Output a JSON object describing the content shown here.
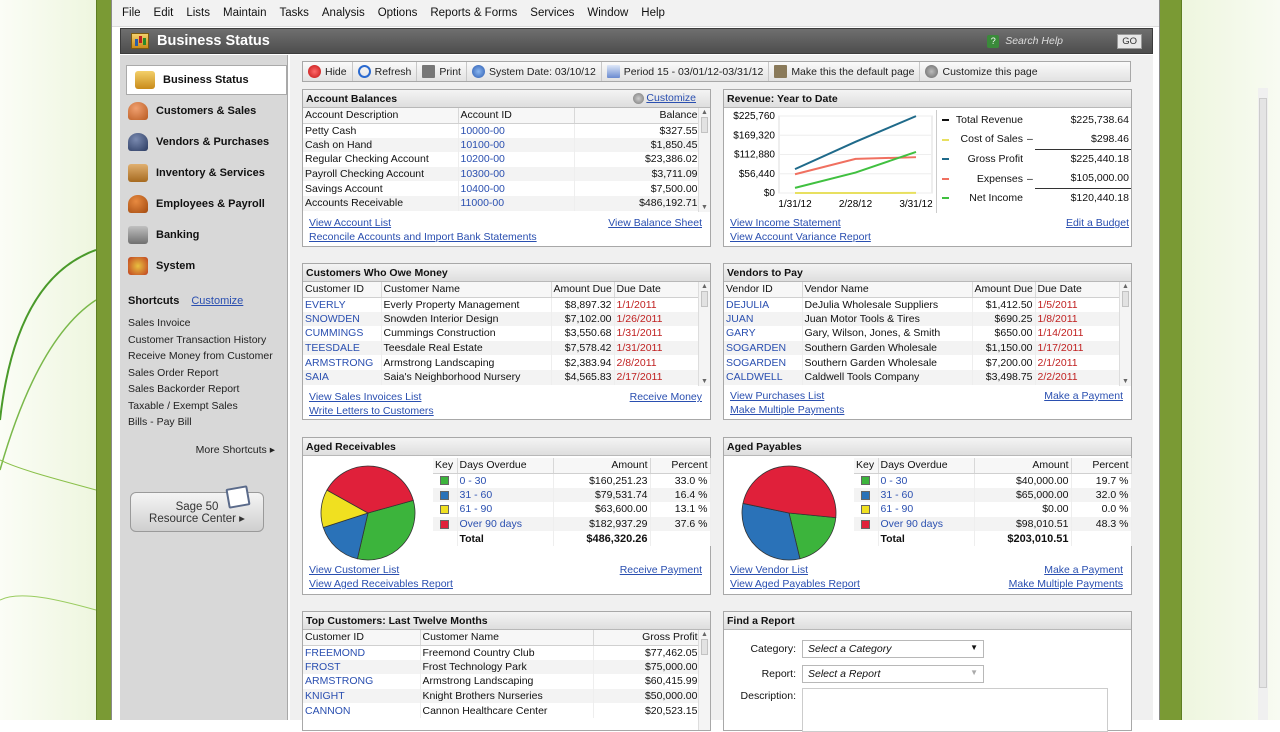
{
  "menu": [
    "File",
    "Edit",
    "Lists",
    "Maintain",
    "Tasks",
    "Analysis",
    "Options",
    "Reports & Forms",
    "Services",
    "Window",
    "Help"
  ],
  "title": "Business Status",
  "search_help": "Search Help",
  "go": "GO",
  "nav": [
    {
      "label": "Business Status",
      "icon": "business-status-icon"
    },
    {
      "label": "Customers & Sales",
      "icon": "customers-icon"
    },
    {
      "label": "Vendors & Purchases",
      "icon": "vendors-icon"
    },
    {
      "label": "Inventory & Services",
      "icon": "inventory-icon"
    },
    {
      "label": "Employees & Payroll",
      "icon": "employees-icon"
    },
    {
      "label": "Banking",
      "icon": "bank-icon"
    },
    {
      "label": "System",
      "icon": "system-icon"
    }
  ],
  "shortcuts": {
    "title": "Shortcuts",
    "customize": "Customize",
    "items": [
      "Sales Invoice",
      "Customer Transaction History",
      "Receive Money from Customer",
      "Sales Order Report",
      "Sales Backorder Report",
      "Taxable / Exempt Sales",
      "Bills - Pay Bill"
    ],
    "more": "More Shortcuts ▸"
  },
  "resource": {
    "line1": "Sage 50",
    "line2": "Resource Center ▸"
  },
  "toolbar": {
    "hide": "Hide",
    "refresh": "Refresh",
    "print": "Print",
    "system_date": "System Date: 03/10/12",
    "period": "Period 15 - 03/01/12-03/31/12",
    "default": "Make this the default page",
    "customize": "Customize this page"
  },
  "account_balances": {
    "title": "Account Balances",
    "customize": "Customize",
    "headers": [
      "Account Description",
      "Account ID",
      "Balance"
    ],
    "rows": [
      [
        "Petty Cash",
        "10000-00",
        "$327.55"
      ],
      [
        "Cash on Hand",
        "10100-00",
        "$1,850.45"
      ],
      [
        "Regular Checking Account",
        "10200-00",
        "$23,386.02"
      ],
      [
        "Payroll Checking Account",
        "10300-00",
        "$3,711.09"
      ],
      [
        "Savings Account",
        "10400-00",
        "$7,500.00"
      ],
      [
        "Accounts Receivable",
        "11000-00",
        "$486,192.71"
      ]
    ],
    "links": [
      "View Account List",
      "View Balance Sheet",
      "Reconcile Accounts and Import Bank Statements"
    ]
  },
  "revenue": {
    "title": "Revenue: Year to Date",
    "links": [
      "View Income Statement",
      "Edit a Budget",
      "View Account Variance Report"
    ],
    "legend": [
      {
        "label": "Total Revenue",
        "op": "",
        "value": "$225,738.64",
        "color": "#111111"
      },
      {
        "label": "Cost of Sales",
        "op": "–",
        "value": "$298.46",
        "color": "#e8e060"
      },
      {
        "label": "Gross Profit",
        "op": "",
        "value": "$225,440.18",
        "color": "#1f6a8a"
      },
      {
        "label": "Expenses",
        "op": "–",
        "value": "$105,000.00",
        "color": "#f07060"
      },
      {
        "label": "Net Income",
        "op": "",
        "value": "$120,440.18",
        "color": "#40c040"
      }
    ]
  },
  "chart_data": {
    "type": "line",
    "x": [
      "1/31/12",
      "2/28/12",
      "3/31/12"
    ],
    "yticks": [
      "$225,760",
      "$169,320",
      "$112,880",
      "$56,440",
      "$0"
    ],
    "ylim": [
      0,
      225760
    ],
    "series": [
      {
        "name": "Gross Profit",
        "color": "#1f6a8a",
        "values": [
          70000,
          150000,
          225440
        ]
      },
      {
        "name": "Expenses",
        "color": "#f07060",
        "values": [
          55000,
          100000,
          105000
        ]
      },
      {
        "name": "Net Income",
        "color": "#40c040",
        "values": [
          15000,
          60000,
          120440
        ]
      },
      {
        "name": "Cost of Sales",
        "color": "#e8e060",
        "values": [
          0,
          0,
          298
        ]
      }
    ]
  },
  "customers_owe": {
    "title": "Customers Who Owe Money",
    "headers": [
      "Customer ID",
      "Customer Name",
      "Amount Due",
      "Due Date"
    ],
    "rows": [
      [
        "EVERLY",
        "Everly Property Management",
        "$8,897.32",
        "1/1/2011"
      ],
      [
        "SNOWDEN",
        "Snowden Interior Design",
        "$7,102.00",
        "1/26/2011"
      ],
      [
        "CUMMINGS",
        "Cummings Construction",
        "$3,550.68",
        "1/31/2011"
      ],
      [
        "TEESDALE",
        "Teesdale Real Estate",
        "$7,578.42",
        "1/31/2011"
      ],
      [
        "ARMSTRONG",
        "Armstrong Landscaping",
        "$2,383.94",
        "2/8/2011"
      ],
      [
        "SAIA",
        "Saia's Neighborhood Nursery",
        "$4,565.83",
        "2/17/2011"
      ]
    ],
    "links": [
      "View Sales Invoices List",
      "Receive Money",
      "Write Letters to Customers"
    ]
  },
  "vendors_pay": {
    "title": "Vendors to Pay",
    "headers": [
      "Vendor ID",
      "Vendor Name",
      "Amount Due",
      "Due Date"
    ],
    "rows": [
      [
        "DEJULIA",
        "DeJulia Wholesale Suppliers",
        "$1,412.50",
        "1/5/2011"
      ],
      [
        "JUAN",
        "Juan Motor Tools & Tires",
        "$690.25",
        "1/8/2011"
      ],
      [
        "GARY",
        "Gary, Wilson, Jones, & Smith",
        "$650.00",
        "1/14/2011"
      ],
      [
        "SOGARDEN",
        "Southern Garden Wholesale",
        "$1,150.00",
        "1/17/2011"
      ],
      [
        "SOGARDEN",
        "Southern Garden Wholesale",
        "$7,200.00",
        "2/1/2011"
      ],
      [
        "CALDWELL",
        "Caldwell Tools Company",
        "$3,498.75",
        "2/2/2011"
      ]
    ],
    "links": [
      "View Purchases List",
      "Make a Payment",
      "Make Multiple Payments"
    ]
  },
  "aged_receivables": {
    "title": "Aged Receivables",
    "headers": [
      "Key",
      "Days Overdue",
      "Amount",
      "Percent"
    ],
    "rows": [
      {
        "color": "#3cb43c",
        "label": "0 - 30",
        "amount": "$160,251.23",
        "percent": "33.0 %"
      },
      {
        "color": "#2a72b8",
        "label": "31 - 60",
        "amount": "$79,531.74",
        "percent": "16.4 %"
      },
      {
        "color": "#f0e020",
        "label": "61 - 90",
        "amount": "$63,600.00",
        "percent": "13.1 %"
      },
      {
        "color": "#e0203a",
        "label": "Over 90 days",
        "amount": "$182,937.29",
        "percent": "37.6 %"
      }
    ],
    "total_label": "Total",
    "total": "$486,320.26",
    "pie": [
      33.0,
      16.4,
      13.1,
      37.6
    ],
    "links": [
      "View Customer List",
      "Receive Payment",
      "View Aged Receivables Report"
    ]
  },
  "aged_payables": {
    "title": "Aged Payables",
    "headers": [
      "Key",
      "Days Overdue",
      "Amount",
      "Percent"
    ],
    "rows": [
      {
        "color": "#3cb43c",
        "label": "0 - 30",
        "amount": "$40,000.00",
        "percent": "19.7 %"
      },
      {
        "color": "#2a72b8",
        "label": "31 - 60",
        "amount": "$65,000.00",
        "percent": "32.0 %"
      },
      {
        "color": "#f0e020",
        "label": "61 - 90",
        "amount": "$0.00",
        "percent": "0.0 %"
      },
      {
        "color": "#e0203a",
        "label": "Over 90 days",
        "amount": "$98,010.51",
        "percent": "48.3 %"
      }
    ],
    "total_label": "Total",
    "total": "$203,010.51",
    "pie": [
      19.7,
      32.0,
      0.0,
      48.3
    ],
    "links": [
      "View Vendor List",
      "Make a Payment",
      "View Aged Payables Report",
      "Make Multiple Payments"
    ]
  },
  "top_customers": {
    "title": "Top Customers: Last Twelve Months",
    "headers": [
      "Customer ID",
      "Customer Name",
      "Gross Profit"
    ],
    "rows": [
      [
        "FREEMOND",
        "Freemond Country Club",
        "$77,462.05"
      ],
      [
        "FROST",
        "Frost Technology Park",
        "$75,000.00"
      ],
      [
        "ARMSTRONG",
        "Armstrong Landscaping",
        "$60,415.99"
      ],
      [
        "KNIGHT",
        "Knight Brothers Nurseries",
        "$50,000.00"
      ],
      [
        "CANNON",
        "Cannon Healthcare Center",
        "$20,523.15"
      ]
    ]
  },
  "find_report": {
    "title": "Find a Report",
    "category_label": "Category:",
    "category_value": "Select a Category",
    "report_label": "Report:",
    "report_value": "Select a Report",
    "description_label": "Description:"
  }
}
